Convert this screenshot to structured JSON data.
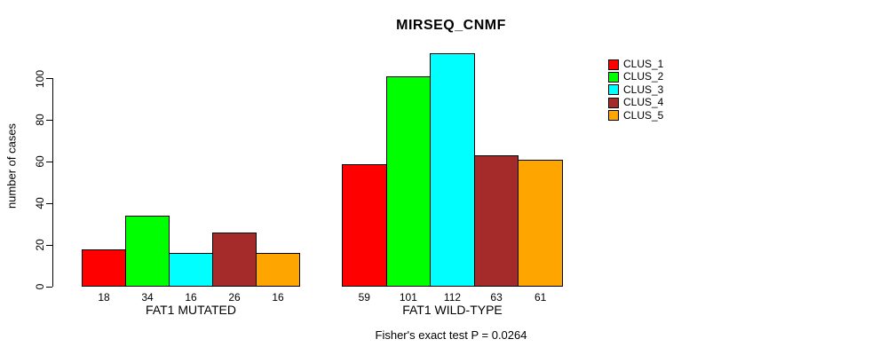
{
  "title": "MIRSEQ_CNMF",
  "y_axis": {
    "label": "number of cases",
    "ticks": [
      0,
      20,
      40,
      60,
      80,
      100
    ]
  },
  "caption": "Fisher's exact test P = 0.0264",
  "legend": {
    "items": [
      {
        "label": "CLUS_1",
        "color": "#FF0000"
      },
      {
        "label": "CLUS_2",
        "color": "#00FF00"
      },
      {
        "label": "CLUS_3",
        "color": "#00FFFF"
      },
      {
        "label": "CLUS_4",
        "color": "#A52A2A"
      },
      {
        "label": "CLUS_5",
        "color": "#FFA500"
      }
    ]
  },
  "chart_data": {
    "type": "bar",
    "title": "MIRSEQ_CNMF",
    "ylabel": "number of cases",
    "ylim": [
      0,
      117
    ],
    "yticks": [
      0,
      20,
      40,
      60,
      80,
      100
    ],
    "grid": false,
    "legend_position": "right-outside",
    "series_labels": [
      "CLUS_1",
      "CLUS_2",
      "CLUS_3",
      "CLUS_4",
      "CLUS_5"
    ],
    "series_colors": [
      "#FF0000",
      "#00FF00",
      "#00FFFF",
      "#A52A2A",
      "#FFA500"
    ],
    "groups": [
      {
        "label": "FAT1 MUTATED",
        "values": [
          18,
          34,
          16,
          26,
          16
        ]
      },
      {
        "label": "FAT1 WILD-TYPE",
        "values": [
          59,
          101,
          112,
          63,
          61
        ]
      }
    ],
    "annotation": "Fisher's exact test P = 0.0264"
  }
}
